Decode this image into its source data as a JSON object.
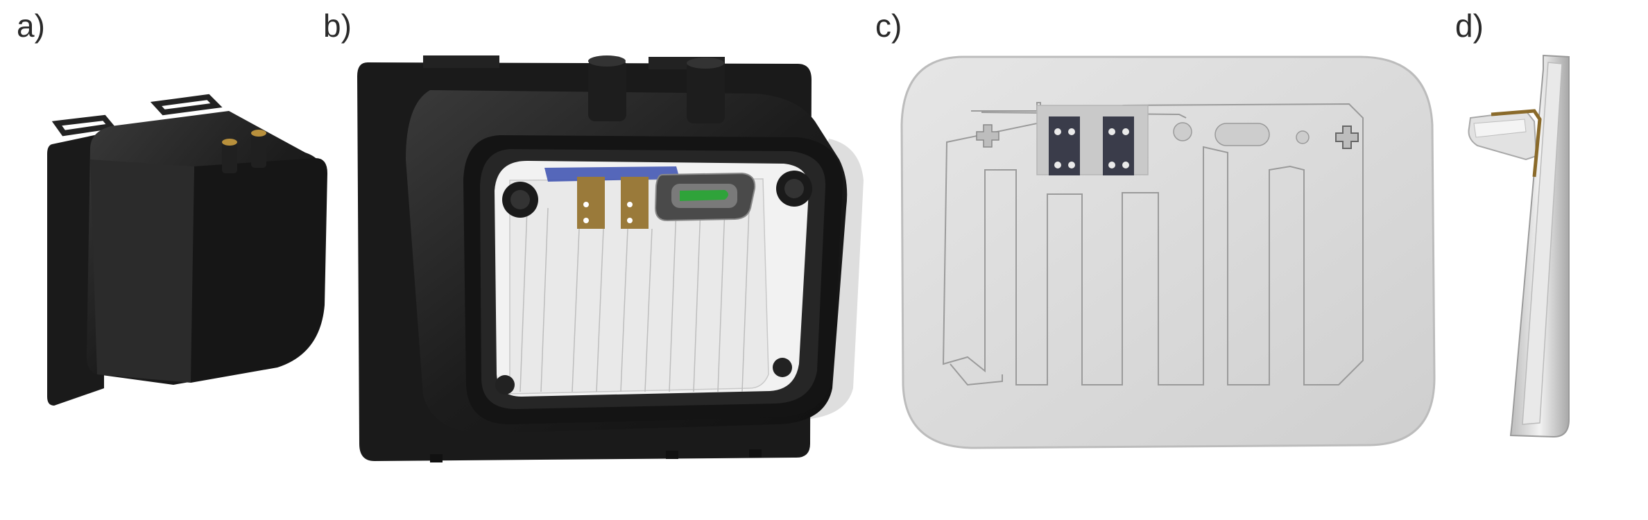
{
  "panels": {
    "a": {
      "label": "a)"
    },
    "b": {
      "label": "b)"
    },
    "c": {
      "label": "c)"
    },
    "d": {
      "label": "d)"
    }
  },
  "colors": {
    "housing": "#1c1c1c",
    "housing_highlight": "#3a3a3a",
    "plate": "#d9d9d9",
    "plate_edge": "#9a9a9a",
    "terminal_copper": "#9a7a3a",
    "terminal_dark": "#3a3c4a",
    "sensor_green": "#2fa33a",
    "blue_strip": "#3a4fb0",
    "brass": "#c9a24a"
  }
}
